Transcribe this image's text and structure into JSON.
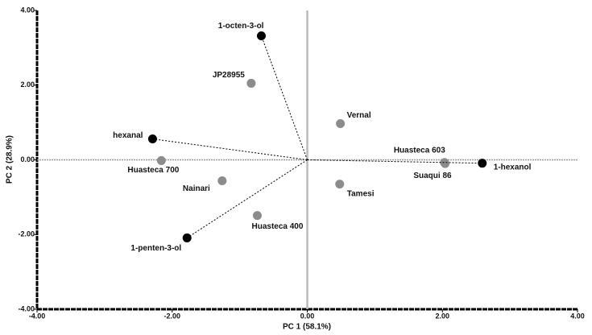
{
  "chart_data": {
    "type": "scatter",
    "x_label": "PC 1 (58.1%)",
    "y_label": "PC 2 (28.9%)",
    "xlim": [
      -4,
      4
    ],
    "ylim": [
      -4,
      4
    ],
    "xticks": [
      {
        "value": -4,
        "label": "-4.00"
      },
      {
        "value": -2,
        "label": "-2.00"
      },
      {
        "value": 0,
        "label": "0.00"
      },
      {
        "value": 2,
        "label": "2.00"
      },
      {
        "value": 4,
        "label": "4.00"
      }
    ],
    "yticks": [
      {
        "value": -4,
        "label": "-4.00"
      },
      {
        "value": -2,
        "label": "-2.00"
      },
      {
        "value": 0,
        "label": "0.00"
      },
      {
        "value": 2,
        "label": "2.00"
      },
      {
        "value": 4,
        "label": "4.00"
      }
    ],
    "series": [
      {
        "color": "#8c8c8c",
        "vectors": false,
        "labels": [
          "JP28955",
          "Huasteca 700",
          "Nainari",
          "Huasteca 400",
          "Vernal",
          "Tamesi",
          "Huasteca 603",
          "Suaqui 86"
        ],
        "x": [
          -0.83,
          -2.16,
          -1.26,
          -0.74,
          0.49,
          0.48,
          2.03,
          2.04
        ],
        "y": [
          2.05,
          -0.02,
          -0.56,
          -1.49,
          0.97,
          -0.65,
          -0.07,
          -0.1
        ]
      },
      {
        "color": "#000000",
        "vectors": true,
        "labels": [
          "1-octen-3-ol",
          "hexanal",
          "1-penten-3-ol",
          "1-hexanol"
        ],
        "x": [
          -0.68,
          -2.29,
          -1.78,
          2.59
        ],
        "y": [
          3.32,
          0.56,
          -2.09,
          -0.09
        ]
      }
    ]
  }
}
